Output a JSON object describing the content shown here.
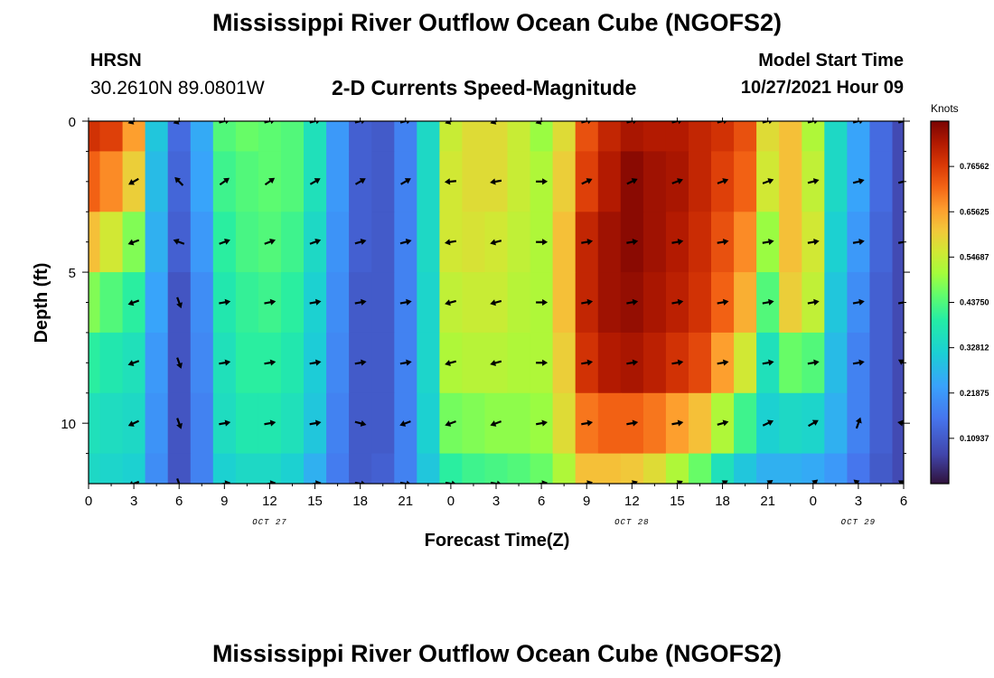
{
  "header": {
    "title": "Mississippi River Outflow Ocean Cube (NGOFS2)",
    "station": "HRSN",
    "coordinates": "30.2610N  89.0801W",
    "subtitle": "2-D Currents Speed-Magnitude",
    "model_start_label": "Model Start Time",
    "model_start_value": "10/27/2021 Hour 09"
  },
  "footer": {
    "title": "Mississippi River Outflow Ocean Cube (NGOFS2)"
  },
  "chart_data": {
    "type": "heatmap",
    "xlabel": "Forecast Time(Z)",
    "ylabel": "Depth (ft)",
    "x_ticks": [
      "0",
      "3",
      "6",
      "9",
      "12",
      "15",
      "18",
      "21",
      "0",
      "3",
      "6",
      "9",
      "12",
      "15",
      "18",
      "21",
      "0",
      "3",
      "6"
    ],
    "x_range_hours": [
      0,
      54
    ],
    "date_labels": [
      {
        "text": "OCT 27",
        "hour": 12
      },
      {
        "text": "OCT 28",
        "hour": 36
      },
      {
        "text": "OCT 29",
        "hour": 51
      }
    ],
    "y_ticks": [
      "0",
      "5",
      "10"
    ],
    "y_range_ft": [
      0,
      12
    ],
    "colorbar": {
      "unit": "Knots",
      "range": [
        0,
        0.875
      ],
      "tick_labels": [
        "0.76562",
        "0.65625",
        "0.54687",
        "0.43750",
        "0.32812",
        "0.21875",
        "0.10937"
      ]
    },
    "speed_knots": {
      "hours": [
        0,
        1.5,
        3,
        4.5,
        6,
        7.5,
        9,
        10.5,
        12,
        13.5,
        15,
        16.5,
        18,
        19.5,
        21,
        22.5,
        24,
        25.5,
        27,
        28.5,
        30,
        31.5,
        33,
        34.5,
        36,
        37.5,
        39,
        40.5,
        42,
        43.5,
        45,
        46.5,
        48,
        49.5,
        51,
        52.5,
        54
      ],
      "depths_ft": [
        0,
        2,
        4,
        6,
        8,
        10,
        12
      ],
      "rows": [
        [
          0.78,
          0.76,
          0.66,
          0.3,
          0.14,
          0.25,
          0.44,
          0.46,
          0.45,
          0.44,
          0.36,
          0.22,
          0.12,
          0.11,
          0.18,
          0.34,
          0.55,
          0.58,
          0.58,
          0.55,
          0.5,
          0.58,
          0.74,
          0.8,
          0.83,
          0.82,
          0.82,
          0.8,
          0.78,
          0.74,
          0.58,
          0.62,
          0.52,
          0.34,
          0.24,
          0.14,
          0.08
        ],
        [
          0.72,
          0.68,
          0.6,
          0.28,
          0.13,
          0.24,
          0.42,
          0.44,
          0.45,
          0.44,
          0.36,
          0.22,
          0.12,
          0.11,
          0.18,
          0.34,
          0.56,
          0.58,
          0.58,
          0.55,
          0.52,
          0.6,
          0.76,
          0.82,
          0.86,
          0.84,
          0.83,
          0.8,
          0.76,
          0.72,
          0.56,
          0.62,
          0.54,
          0.34,
          0.24,
          0.14,
          0.08
        ],
        [
          0.62,
          0.56,
          0.48,
          0.26,
          0.12,
          0.22,
          0.4,
          0.43,
          0.44,
          0.42,
          0.34,
          0.21,
          0.12,
          0.11,
          0.18,
          0.34,
          0.56,
          0.57,
          0.56,
          0.54,
          0.52,
          0.62,
          0.8,
          0.84,
          0.86,
          0.84,
          0.82,
          0.79,
          0.74,
          0.68,
          0.5,
          0.62,
          0.56,
          0.32,
          0.22,
          0.13,
          0.08
        ],
        [
          0.48,
          0.44,
          0.4,
          0.24,
          0.1,
          0.2,
          0.38,
          0.41,
          0.42,
          0.4,
          0.32,
          0.2,
          0.11,
          0.11,
          0.18,
          0.33,
          0.54,
          0.55,
          0.55,
          0.53,
          0.52,
          0.62,
          0.8,
          0.84,
          0.85,
          0.83,
          0.81,
          0.78,
          0.72,
          0.64,
          0.44,
          0.6,
          0.54,
          0.3,
          0.2,
          0.12,
          0.08
        ],
        [
          0.4,
          0.38,
          0.36,
          0.22,
          0.1,
          0.19,
          0.36,
          0.4,
          0.4,
          0.38,
          0.31,
          0.19,
          0.11,
          0.11,
          0.18,
          0.33,
          0.52,
          0.53,
          0.53,
          0.52,
          0.52,
          0.6,
          0.78,
          0.82,
          0.83,
          0.81,
          0.78,
          0.75,
          0.66,
          0.56,
          0.36,
          0.46,
          0.44,
          0.28,
          0.18,
          0.12,
          0.08
        ],
        [
          0.36,
          0.35,
          0.34,
          0.21,
          0.1,
          0.18,
          0.35,
          0.38,
          0.38,
          0.36,
          0.3,
          0.18,
          0.11,
          0.11,
          0.18,
          0.32,
          0.47,
          0.48,
          0.49,
          0.49,
          0.5,
          0.58,
          0.7,
          0.72,
          0.72,
          0.7,
          0.66,
          0.62,
          0.52,
          0.42,
          0.32,
          0.34,
          0.33,
          0.26,
          0.18,
          0.12,
          0.08
        ],
        [
          0.34,
          0.33,
          0.32,
          0.2,
          0.1,
          0.18,
          0.32,
          0.34,
          0.34,
          0.32,
          0.26,
          0.17,
          0.11,
          0.12,
          0.18,
          0.3,
          0.4,
          0.42,
          0.43,
          0.44,
          0.46,
          0.52,
          0.62,
          0.62,
          0.61,
          0.58,
          0.52,
          0.46,
          0.36,
          0.3,
          0.26,
          0.26,
          0.25,
          0.22,
          0.16,
          0.11,
          0.08
        ]
      ]
    },
    "arrows": {
      "hours": [
        3,
        6,
        9,
        12,
        15,
        18,
        21,
        24,
        27,
        30,
        33,
        36,
        39,
        42,
        45,
        48,
        51,
        54
      ],
      "depths_ft": [
        0,
        2,
        4,
        6,
        8,
        10,
        12
      ],
      "direction_deg": [
        [
          200,
          200,
          15,
          15,
          15,
          15,
          15,
          200,
          200,
          200,
          15,
          15,
          15,
          15,
          15,
          15,
          15,
          15
        ],
        [
          210,
          135,
          35,
          35,
          30,
          30,
          30,
          185,
          190,
          0,
          25,
          25,
          20,
          20,
          20,
          15,
          15,
          15
        ],
        [
          200,
          160,
          20,
          20,
          20,
          15,
          15,
          190,
          195,
          0,
          10,
          10,
          10,
          10,
          10,
          10,
          10,
          10
        ],
        [
          200,
          290,
          10,
          10,
          10,
          10,
          10,
          195,
          195,
          0,
          10,
          10,
          10,
          10,
          10,
          10,
          10,
          10
        ],
        [
          200,
          290,
          10,
          10,
          10,
          10,
          10,
          195,
          195,
          0,
          10,
          10,
          10,
          10,
          10,
          10,
          10,
          150
        ],
        [
          205,
          290,
          10,
          10,
          10,
          345,
          200,
          200,
          200,
          10,
          10,
          10,
          10,
          15,
          25,
          30,
          70,
          170
        ],
        [
          200,
          290,
          10,
          10,
          10,
          350,
          350,
          350,
          350,
          10,
          15,
          20,
          25,
          30,
          35,
          40,
          140,
          150
        ]
      ]
    }
  }
}
